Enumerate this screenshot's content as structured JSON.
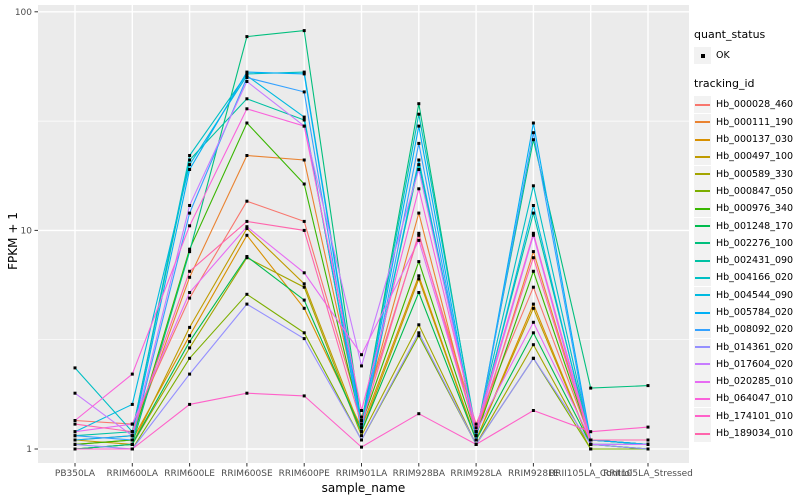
{
  "axes": {
    "x_title": "sample_name",
    "y_title": "FPKM + 1",
    "y_tick_labels": [
      "1",
      "10",
      "100"
    ]
  },
  "legend": {
    "quant_status_title": "quant_status",
    "quant_status_items": [
      {
        "label": "OK",
        "shape": "black-point"
      }
    ],
    "tracking_id_title": "tracking_id"
  },
  "colors": {
    "panel_bg": "#EBEBEB",
    "grid": "#FFFFFF",
    "legend_key_bg": "#F2F2F2",
    "tick_text": "#4D4D4D",
    "tick_mark": "#333333",
    "point": "#000000"
  },
  "chart_data": {
    "type": "line",
    "title": "",
    "xlabel": "sample_name",
    "ylabel": "FPKM + 1",
    "y_scale": "log10",
    "y_ticks": [
      1,
      10,
      100
    ],
    "y_minor_ticks": [
      3.1623,
      31.623
    ],
    "ylim": [
      0.93,
      112
    ],
    "grid": "white major+minor on gray panel",
    "legend_position": "right",
    "point_shape": "small black square (quant_status OK)",
    "categories": [
      "PB350LA",
      "RRIM600LA",
      "RRIM600LE",
      "RRIM600SE",
      "RRIM600PE",
      "RRIM901LA",
      "RRIM928BA",
      "RRIM928LA",
      "RRIM928LE",
      "RRII105LA_Control",
      "RRII105LA_Stressed"
    ],
    "series": [
      {
        "name": "Hb_000028_460",
        "color": "#F8766D",
        "values": [
          1.35,
          1.3,
          4.9,
          13.6,
          11.0,
          1.4,
          9.5,
          1.3,
          5.5,
          1.1,
          1.05
        ]
      },
      {
        "name": "Hb_000111_190",
        "color": "#EA8331",
        "values": [
          1.1,
          1.15,
          6.1,
          22.0,
          21.0,
          1.35,
          12.0,
          1.15,
          8.0,
          1.1,
          1.05
        ]
      },
      {
        "name": "Hb_000137_030",
        "color": "#D89000",
        "values": [
          1.05,
          1.1,
          3.3,
          9.5,
          4.4,
          1.25,
          6.2,
          1.1,
          4.6,
          1.05,
          1.05
        ]
      },
      {
        "name": "Hb_000497_100",
        "color": "#C09B00",
        "values": [
          1.1,
          1.05,
          3.6,
          10.2,
          5.7,
          1.2,
          6.0,
          1.1,
          4.4,
          1.05,
          1.0
        ]
      },
      {
        "name": "Hb_000589_330",
        "color": "#A3A500",
        "values": [
          1.0,
          1.05,
          2.9,
          7.5,
          5.5,
          1.15,
          3.7,
          1.05,
          3.0,
          1.0,
          1.0
        ]
      },
      {
        "name": "Hb_000847_050",
        "color": "#7CAE00",
        "values": [
          1.0,
          1.0,
          2.6,
          5.1,
          3.4,
          1.1,
          3.3,
          1.05,
          2.6,
          1.0,
          1.0
        ]
      },
      {
        "name": "Hb_000976_340",
        "color": "#39B600",
        "values": [
          1.05,
          1.1,
          8.2,
          31.0,
          16.3,
          1.3,
          7.2,
          1.15,
          6.5,
          1.1,
          1.05
        ]
      },
      {
        "name": "Hb_001248_170",
        "color": "#00BB4E",
        "values": [
          1.0,
          1.05,
          3.1,
          7.6,
          4.8,
          1.2,
          5.2,
          1.1,
          3.4,
          1.05,
          1.0
        ]
      },
      {
        "name": "Hb_002276_100",
        "color": "#00BF7D",
        "values": [
          1.0,
          1.05,
          8.0,
          77.0,
          82.0,
          1.3,
          38.0,
          1.15,
          26.0,
          1.9,
          1.95
        ]
      },
      {
        "name": "Hb_002431_090",
        "color": "#00C1A3",
        "values": [
          1.15,
          1.2,
          21.0,
          40.0,
          32.0,
          1.25,
          20.0,
          1.2,
          12.0,
          1.1,
          1.05
        ]
      },
      {
        "name": "Hb_004166_020",
        "color": "#00BFC4",
        "values": [
          2.35,
          1.2,
          22.0,
          52.0,
          53.0,
          1.3,
          34.0,
          1.2,
          16.0,
          1.1,
          1.05
        ]
      },
      {
        "name": "Hb_004544_090",
        "color": "#00BAE0",
        "values": [
          1.2,
          1.6,
          20.0,
          51.0,
          33.0,
          1.2,
          21.0,
          1.15,
          13.0,
          1.05,
          1.05
        ]
      },
      {
        "name": "Hb_005784_020",
        "color": "#00B0F6",
        "values": [
          1.1,
          1.15,
          19.0,
          53.0,
          52.0,
          1.25,
          30.0,
          1.1,
          31.0,
          1.1,
          1.05
        ]
      },
      {
        "name": "Hb_008092_020",
        "color": "#35A2FF",
        "values": [
          1.15,
          1.1,
          12.0,
          50.0,
          43.0,
          1.2,
          25.0,
          1.1,
          28.0,
          1.05,
          1.05
        ]
      },
      {
        "name": "Hb_014361_020",
        "color": "#9590FF",
        "values": [
          1.05,
          1.0,
          2.2,
          4.6,
          3.2,
          1.1,
          3.4,
          1.05,
          2.6,
          1.05,
          1.0
        ]
      },
      {
        "name": "Hb_017604_020",
        "color": "#C77CFF",
        "values": [
          1.8,
          1.15,
          13.0,
          48.0,
          30.0,
          2.4,
          19.0,
          1.2,
          9.5,
          1.05,
          1.05
        ]
      },
      {
        "name": "Hb_020285_010",
        "color": "#E76BF3",
        "values": [
          1.2,
          1.3,
          5.2,
          10.4,
          6.4,
          2.7,
          9.0,
          1.2,
          3.8,
          1.1,
          1.1
        ]
      },
      {
        "name": "Hb_064047_010",
        "color": "#FA62DB",
        "values": [
          1.35,
          2.2,
          10.5,
          36.0,
          30.0,
          1.5,
          15.5,
          1.25,
          9.7,
          1.1,
          1.1
        ]
      },
      {
        "name": "Hb_174101_010",
        "color": "#FF61C9",
        "values": [
          1.0,
          1.0,
          1.6,
          1.8,
          1.75,
          1.02,
          1.45,
          1.05,
          1.5,
          1.2,
          1.26
        ]
      },
      {
        "name": "Hb_189034_010",
        "color": "#FF65AC",
        "values": [
          1.3,
          1.2,
          6.5,
          11.0,
          10.0,
          1.3,
          9.7,
          1.2,
          7.5,
          1.1,
          1.1
        ]
      }
    ]
  }
}
